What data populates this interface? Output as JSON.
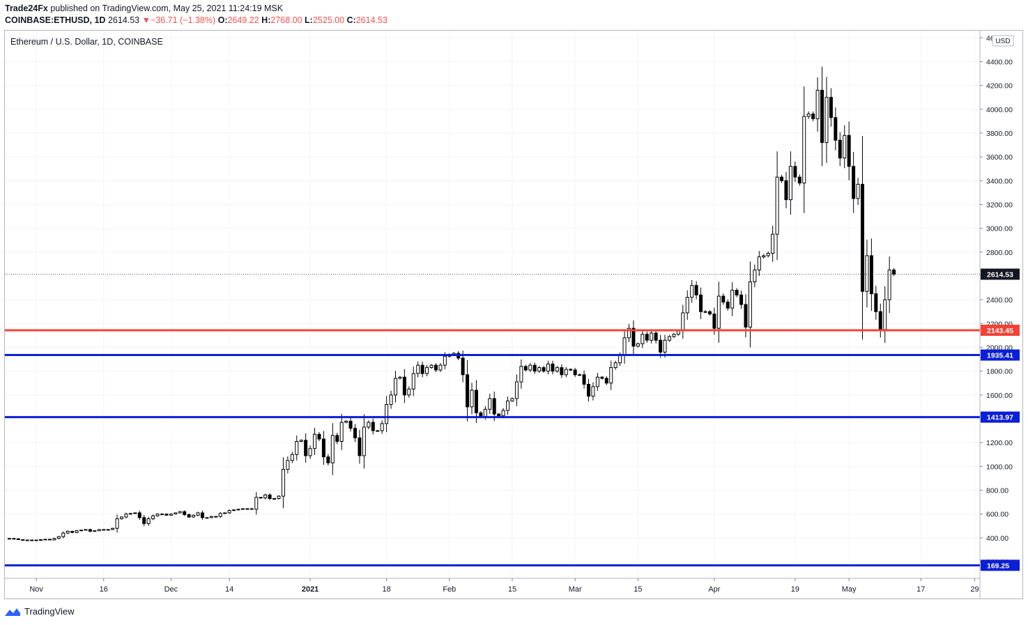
{
  "header": {
    "author": "Trade24Fx",
    "published_text": "published on TradingView.com, May 25, 2021 11:24:19 MSK",
    "symbol": "COINBASE:ETHUSD, 1D",
    "last": "2614.53",
    "arrow": "▼",
    "change": "−36.71 (−1.38%)",
    "o_label": "O:",
    "o_value": "2649.22",
    "h_label": "H:",
    "h_value": "2768.00",
    "l_label": "L:",
    "l_value": "2525.00",
    "c_label": "C:",
    "c_value": "2614.53"
  },
  "footer": {
    "brand": "TradingView",
    "logo_icon": "tradingview-logo-icon"
  },
  "colors": {
    "up": "#ffffff",
    "down": "#000000",
    "red_line": "#f44336",
    "blue_line": "#0b1fd6",
    "grid": "#f0f3fa"
  },
  "chart_data": {
    "type": "candlestick",
    "title": "Ethereum / U.S. Dollar, 1D, COINBASE",
    "currency_label": "USD",
    "x_range": [
      "2020-10-25",
      "2021-05-30"
    ],
    "y_range": [
      60,
      4660
    ],
    "y_ticks": [
      "4600.00",
      "4400.00",
      "4200.00",
      "4000.00",
      "3800.00",
      "3600.00",
      "3400.00",
      "3200.00",
      "3000.00",
      "2800.00",
      "2600.00",
      "2400.00",
      "2200.00",
      "2000.00",
      "1800.00",
      "1600.00",
      "1400.00",
      "1200.00",
      "1000.00",
      "800.00",
      "600.00",
      "400.00",
      "200.00"
    ],
    "x_ticks": [
      {
        "date": "2020-11-01",
        "label": "Nov"
      },
      {
        "date": "2020-11-16",
        "label": "16"
      },
      {
        "date": "2020-12-01",
        "label": "Dec"
      },
      {
        "date": "2020-12-14",
        "label": "14"
      },
      {
        "date": "2021-01-01",
        "label": "2021"
      },
      {
        "date": "2021-01-18",
        "label": "18"
      },
      {
        "date": "2021-02-01",
        "label": "Feb"
      },
      {
        "date": "2021-02-15",
        "label": "15"
      },
      {
        "date": "2021-03-01",
        "label": "Mar"
      },
      {
        "date": "2021-03-15",
        "label": "15"
      },
      {
        "date": "2021-04-01",
        "label": "Apr"
      },
      {
        "date": "2021-04-19",
        "label": "19"
      },
      {
        "date": "2021-05-01",
        "label": "May"
      },
      {
        "date": "2021-05-17",
        "label": "17"
      },
      {
        "date": "2021-05-29",
        "label": "29"
      }
    ],
    "start_date": "2020-10-26",
    "closes": [
      395,
      392,
      385,
      380,
      382,
      380,
      382,
      385,
      388,
      383,
      395,
      410,
      440,
      455,
      445,
      460,
      465,
      470,
      455,
      460,
      470,
      465,
      470,
      480,
      560,
      575,
      600,
      605,
      610,
      570,
      520,
      560,
      585,
      600,
      600,
      590,
      600,
      610,
      620,
      595,
      575,
      590,
      610,
      570,
      570,
      580,
      580,
      605,
      610,
      630,
      635,
      640,
      645,
      645,
      640,
      740,
      735,
      760,
      730,
      730,
      750,
      975,
      1050,
      1100,
      1210,
      1220,
      1090,
      1150,
      1270,
      1230,
      1080,
      1030,
      1260,
      1210,
      1370,
      1380,
      1320,
      1240,
      1090,
      1330,
      1370,
      1300,
      1300,
      1360,
      1520,
      1600,
      1740,
      1750,
      1600,
      1650,
      1780,
      1850,
      1780,
      1830,
      1850,
      1810,
      1850,
      1925,
      1940,
      1950,
      1910,
      1770,
      1500,
      1640,
      1450,
      1420,
      1480,
      1570,
      1440,
      1425,
      1470,
      1550,
      1570,
      1710,
      1840,
      1810,
      1850,
      1800,
      1830,
      1800,
      1860,
      1800,
      1830,
      1770,
      1815,
      1810,
      1770,
      1770,
      1690,
      1590,
      1670,
      1750,
      1740,
      1700,
      1830,
      1870,
      1930,
      2080,
      2160,
      2010,
      2030,
      2110,
      2060,
      2120,
      2060,
      1960,
      2060,
      2090,
      2110,
      2140,
      2290,
      2420,
      2520,
      2440,
      2300,
      2300,
      2280,
      2160,
      2430,
      2380,
      2330,
      2480,
      2440,
      2360,
      2170,
      2550,
      2650,
      2760,
      2770,
      2790,
      2950,
      3430,
      3400,
      3240,
      3520,
      3430,
      3380,
      3940,
      3960,
      3920,
      4160,
      3720,
      4100,
      3930,
      3740,
      3590,
      3780,
      3520,
      3250,
      3370,
      2470,
      2770,
      2450,
      2300,
      2150,
      2400,
      2650,
      2614.53
    ],
    "horizontal_lines": [
      {
        "value": 2143.45,
        "label": "2143.45",
        "color": "#f44336"
      },
      {
        "value": 1935.41,
        "label": "1935.41",
        "color": "#0b1fd6"
      },
      {
        "value": 1413.97,
        "label": "1413.97",
        "color": "#0b1fd6"
      },
      {
        "value": 169.25,
        "label": "169.25",
        "color": "#0b1fd6"
      }
    ],
    "last_price": {
      "value": 2614.53,
      "label": "2614.53"
    }
  }
}
